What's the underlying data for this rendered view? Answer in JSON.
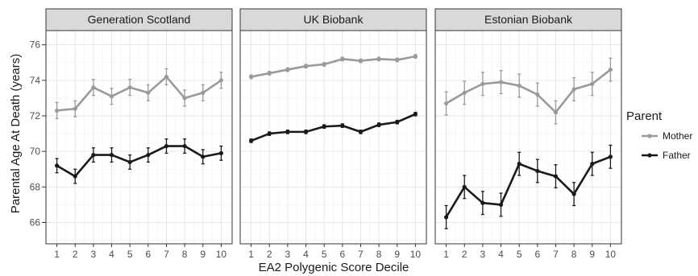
{
  "chart_data": {
    "type": "line",
    "xlabel": "EA2 Polygenic Score Decile",
    "ylabel": "Parental Age At Death (years)",
    "x": [
      1,
      2,
      3,
      4,
      5,
      6,
      7,
      8,
      9,
      10
    ],
    "ylim": [
      64.8,
      76.8
    ],
    "yticks": [
      66,
      68,
      70,
      72,
      74,
      76
    ],
    "grid": true,
    "legend": {
      "title": "Parent",
      "position": "right",
      "entries": [
        {
          "name": "Mother",
          "color": "#9a9a9a"
        },
        {
          "name": "Father",
          "color": "#1a1a1a"
        }
      ]
    },
    "panels": [
      {
        "title": "Generation Scotland",
        "series": [
          {
            "name": "Mother",
            "color": "#9a9a9a",
            "values": [
              72.3,
              72.4,
              73.6,
              73.1,
              73.6,
              73.3,
              74.2,
              73.0,
              73.3,
              74.0
            ],
            "error": [
              0.45,
              0.45,
              0.45,
              0.45,
              0.45,
              0.45,
              0.45,
              0.45,
              0.45,
              0.45
            ]
          },
          {
            "name": "Father",
            "color": "#1a1a1a",
            "values": [
              69.2,
              68.6,
              69.8,
              69.8,
              69.4,
              69.8,
              70.3,
              70.3,
              69.7,
              69.9
            ],
            "error": [
              0.4,
              0.4,
              0.4,
              0.4,
              0.4,
              0.4,
              0.4,
              0.4,
              0.4,
              0.4
            ]
          }
        ]
      },
      {
        "title": "UK Biobank",
        "series": [
          {
            "name": "Mother",
            "color": "#9a9a9a",
            "values": [
              74.2,
              74.4,
              74.6,
              74.8,
              74.9,
              75.2,
              75.1,
              75.2,
              75.15,
              75.35
            ],
            "error": [
              0.1,
              0.1,
              0.1,
              0.1,
              0.1,
              0.1,
              0.1,
              0.1,
              0.1,
              0.1
            ]
          },
          {
            "name": "Father",
            "color": "#1a1a1a",
            "values": [
              70.6,
              71.0,
              71.1,
              71.1,
              71.4,
              71.45,
              71.1,
              71.5,
              71.65,
              72.1
            ],
            "error": [
              0.1,
              0.1,
              0.1,
              0.1,
              0.1,
              0.1,
              0.1,
              0.1,
              0.1,
              0.1
            ]
          }
        ]
      },
      {
        "title": "Estonian Biobank",
        "series": [
          {
            "name": "Mother",
            "color": "#9a9a9a",
            "values": [
              72.7,
              73.3,
              73.8,
              73.9,
              73.7,
              73.2,
              72.2,
              73.5,
              73.8,
              74.6
            ],
            "error": [
              0.65,
              0.65,
              0.65,
              0.65,
              0.65,
              0.65,
              0.65,
              0.65,
              0.65,
              0.65
            ]
          },
          {
            "name": "Father",
            "color": "#1a1a1a",
            "values": [
              66.3,
              68.0,
              67.1,
              67.0,
              69.3,
              68.9,
              68.6,
              67.6,
              69.3,
              69.7
            ],
            "error": [
              0.65,
              0.65,
              0.65,
              0.65,
              0.65,
              0.65,
              0.65,
              0.65,
              0.65,
              0.65
            ]
          }
        ]
      }
    ]
  }
}
